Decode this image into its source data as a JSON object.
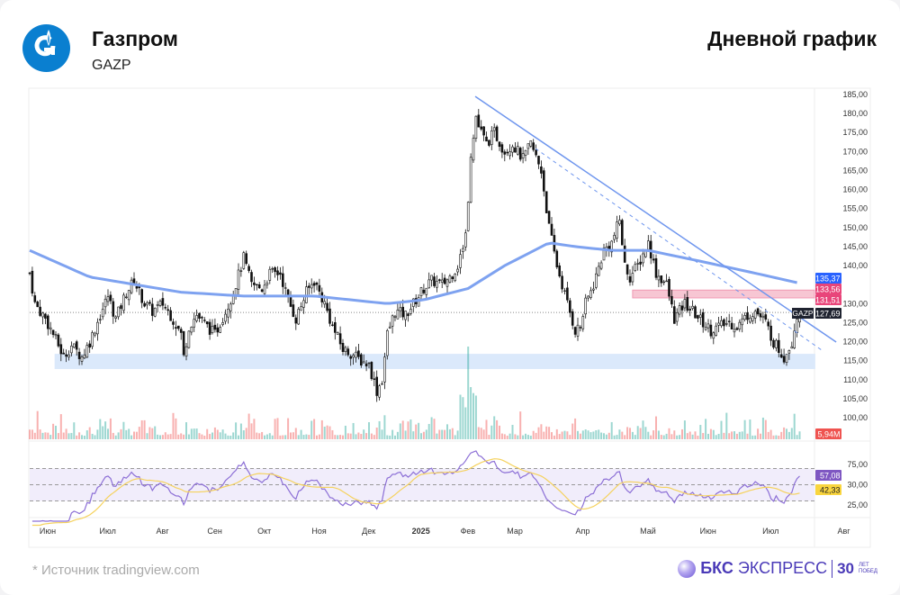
{
  "header": {
    "company": "Газпром",
    "ticker": "GAZP",
    "chart_title": "Дневной график"
  },
  "footer": {
    "source": "* Источник tradingview.com",
    "brand_bold": "БКС",
    "brand_light": "ЭКСПРЕСС",
    "anniversary_num": "30",
    "anniversary_l1": "ЛЕТ",
    "anniversary_l2": "ПОБЕД"
  },
  "colors": {
    "up": "#26a69a",
    "down": "#ef5350",
    "candle": "#111111",
    "ma": "#7ea2f0",
    "trend": "#6f96ee",
    "pink_zone": "#f7c6d3",
    "blue_zone": "#dbe9fb",
    "rsi": "#8c6fd6",
    "rsi_ma": "#f5d25e"
  },
  "chart_data": {
    "type": "candlestick",
    "title": "Дневной график",
    "symbol": "GAZP",
    "y_ticks": [
      "185,00",
      "180,00",
      "175,00",
      "170,00",
      "165,00",
      "160,00",
      "155,00",
      "150,00",
      "145,00",
      "140,00",
      "130,00",
      "125,00",
      "120,00",
      "115,00",
      "110,00",
      "105,00",
      "100,00"
    ],
    "ylim": [
      100,
      185
    ],
    "x_ticks": [
      [
        "Июн",
        0
      ],
      [
        "Июл",
        23
      ],
      [
        "Авг",
        44
      ],
      [
        "Сен",
        64
      ],
      [
        "Окт",
        83
      ],
      [
        "Ноя",
        104
      ],
      [
        "Дек",
        123
      ],
      [
        "2025",
        143
      ],
      [
        "Фев",
        161
      ],
      [
        "Мар",
        179
      ],
      [
        "Апр",
        205
      ],
      [
        "Май",
        230
      ],
      [
        "Июн",
        253
      ],
      [
        "Июл",
        277
      ],
      [
        "Авг",
        305
      ]
    ],
    "days": 296,
    "close_anchors": [
      [
        0,
        138
      ],
      [
        2,
        130
      ],
      [
        6,
        126
      ],
      [
        9,
        122
      ],
      [
        13,
        116
      ],
      [
        16,
        119
      ],
      [
        20,
        116
      ],
      [
        23,
        120
      ],
      [
        27,
        127
      ],
      [
        30,
        132
      ],
      [
        33,
        126
      ],
      [
        37,
        133
      ],
      [
        40,
        136
      ],
      [
        44,
        130
      ],
      [
        47,
        128
      ],
      [
        51,
        130
      ],
      [
        54,
        127
      ],
      [
        58,
        122
      ],
      [
        59,
        116
      ],
      [
        61,
        124
      ],
      [
        64,
        127
      ],
      [
        68,
        124
      ],
      [
        71,
        122
      ],
      [
        75,
        128
      ],
      [
        78,
        133
      ],
      [
        82,
        142
      ],
      [
        85,
        135
      ],
      [
        89,
        134
      ],
      [
        92,
        138
      ],
      [
        96,
        138
      ],
      [
        99,
        131
      ],
      [
        102,
        126
      ],
      [
        106,
        133
      ],
      [
        109,
        136
      ],
      [
        113,
        130
      ],
      [
        116,
        124
      ],
      [
        120,
        118
      ],
      [
        123,
        117
      ],
      [
        127,
        115
      ],
      [
        130,
        114
      ],
      [
        133,
        107
      ],
      [
        135,
        110
      ],
      [
        137,
        122
      ],
      [
        140,
        128
      ],
      [
        144,
        127
      ],
      [
        147,
        130
      ],
      [
        151,
        134
      ],
      [
        154,
        136
      ],
      [
        158,
        135
      ],
      [
        161,
        137
      ],
      [
        164,
        140
      ],
      [
        167,
        148
      ],
      [
        169,
        168
      ],
      [
        171,
        178
      ],
      [
        175,
        172
      ],
      [
        178,
        175
      ],
      [
        182,
        170
      ],
      [
        185,
        172
      ],
      [
        189,
        168
      ],
      [
        192,
        172
      ],
      [
        196,
        165
      ],
      [
        197,
        160
      ],
      [
        199,
        150
      ],
      [
        202,
        140
      ],
      [
        206,
        130
      ],
      [
        209,
        123
      ],
      [
        211,
        124
      ],
      [
        213,
        130
      ],
      [
        216,
        135
      ],
      [
        220,
        144
      ],
      [
        223,
        146
      ],
      [
        226,
        152
      ],
      [
        228,
        140
      ],
      [
        230,
        137
      ],
      [
        233,
        140
      ],
      [
        237,
        146
      ],
      [
        240,
        138
      ],
      [
        244,
        135
      ],
      [
        247,
        126
      ],
      [
        251,
        130
      ],
      [
        254,
        128
      ],
      [
        258,
        125
      ],
      [
        261,
        123
      ],
      [
        264,
        124
      ],
      [
        268,
        125
      ],
      [
        271,
        124
      ],
      [
        275,
        127
      ],
      [
        278,
        128
      ],
      [
        282,
        125
      ],
      [
        285,
        120
      ],
      [
        289,
        116
      ],
      [
        292,
        120
      ],
      [
        294,
        127
      ],
      [
        295,
        127.69
      ]
    ],
    "ma200_anchors": [
      [
        0,
        144
      ],
      [
        23,
        137
      ],
      [
        58,
        133
      ],
      [
        82,
        132
      ],
      [
        109,
        132
      ],
      [
        137,
        130
      ],
      [
        151,
        131
      ],
      [
        168,
        134
      ],
      [
        182,
        140
      ],
      [
        199,
        146
      ],
      [
        209,
        145
      ],
      [
        223,
        144
      ],
      [
        237,
        144
      ],
      [
        258,
        141
      ],
      [
        278,
        138
      ],
      [
        295,
        135.37
      ]
    ],
    "trendline_solid": [
      [
        170.7,
        184.5
      ],
      [
        309,
        119.9
      ]
    ],
    "trendline_dashed": [
      [
        193.8,
        170.8
      ],
      [
        304,
        117.5
      ]
    ],
    "resistance_zone": {
      "from_day": 231,
      "low": 131.51,
      "high": 133.56,
      "low_label": "131,51",
      "high_label": "133,56"
    },
    "support_zone": {
      "from_day": 13,
      "to_day": 301,
      "low": 112.8,
      "high": 116.8
    },
    "last_price": {
      "value": 127.69,
      "label": "127,69",
      "symbol": "GAZP"
    },
    "ma200_last": {
      "value": 135.37,
      "label": "135,37"
    },
    "volume": {
      "last_label": "5,94M",
      "spike_day": 168
    },
    "rsi": {
      "ticks": [
        "75,00",
        "30,00",
        "25,00"
      ],
      "upper": 70,
      "mid": 50,
      "lower": 30,
      "rsi_last": "57,08",
      "rsi_ma_last": "42,33",
      "period": 14
    }
  }
}
